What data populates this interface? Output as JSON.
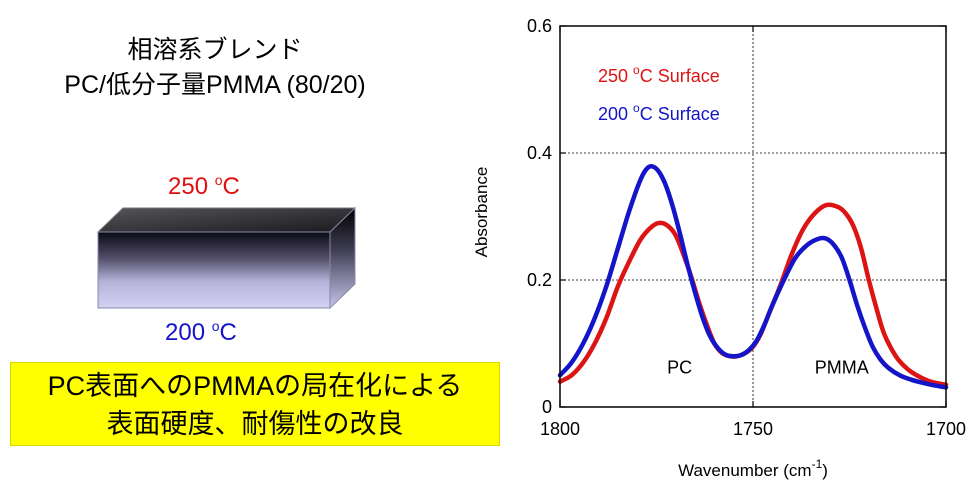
{
  "left_panel": {
    "title_line1": "相溶系ブレンド",
    "title_line2": "PC/低分子量PMMA (80/20)",
    "top_temp": {
      "value": "250 ",
      "sup": "o",
      "unit": "C",
      "color": "#e01010"
    },
    "bottom_temp": {
      "value": "200 ",
      "sup": "o",
      "unit": "C",
      "color": "#1414c8"
    },
    "banner_line1": "PC表面へのPMMAの局在化による",
    "banner_line2": "表面硬度、耐傷性の改良",
    "banner_color": "#ffff00"
  },
  "chart_data": {
    "type": "line",
    "xlabel": "Wavenumber (cm",
    "xlabel_sup": "-1",
    "xlabel_end": ")",
    "ylabel": "Absorbance",
    "xlim": [
      1800,
      1700
    ],
    "ylim": [
      0,
      0.6
    ],
    "x_ticks": [
      "1800",
      "1750",
      "1700"
    ],
    "y_ticks": [
      "0",
      "0.2",
      "0.4",
      "0.6"
    ],
    "reference_lines": {
      "x": 1750,
      "y": [
        0.2,
        0.4
      ]
    },
    "annotations": [
      {
        "text": "PC",
        "x": 1769,
        "y": 0.04
      },
      {
        "text": "PMMA",
        "x": 1727,
        "y": 0.04
      }
    ],
    "series": [
      {
        "name": "250 °C Surface",
        "name_parts": [
          "250 ",
          "o",
          "C Surface"
        ],
        "color": "#dd1414",
        "x": [
          1800,
          1797,
          1794,
          1791,
          1788,
          1785,
          1782,
          1779,
          1776,
          1774,
          1772,
          1770,
          1768,
          1766,
          1764,
          1762,
          1760,
          1758,
          1756,
          1754,
          1752,
          1750,
          1748,
          1746,
          1743,
          1740,
          1737,
          1734,
          1731,
          1728,
          1726,
          1724,
          1722,
          1720,
          1718,
          1716,
          1713,
          1710,
          1707,
          1704,
          1700
        ],
        "y": [
          0.04,
          0.05,
          0.07,
          0.1,
          0.14,
          0.19,
          0.23,
          0.265,
          0.285,
          0.29,
          0.285,
          0.27,
          0.24,
          0.205,
          0.165,
          0.13,
          0.1,
          0.085,
          0.08,
          0.08,
          0.085,
          0.095,
          0.115,
          0.145,
          0.19,
          0.24,
          0.28,
          0.305,
          0.318,
          0.315,
          0.305,
          0.285,
          0.25,
          0.2,
          0.155,
          0.115,
          0.08,
          0.06,
          0.048,
          0.04,
          0.035
        ]
      },
      {
        "name": "200 °C Surface",
        "name_parts": [
          "200 ",
          "o",
          "C Surface"
        ],
        "color": "#1414c8",
        "x": [
          1800,
          1797,
          1794,
          1791,
          1788,
          1785,
          1782,
          1779,
          1777,
          1775,
          1773,
          1771,
          1769,
          1767,
          1765,
          1763,
          1761,
          1759,
          1757,
          1755,
          1753,
          1751,
          1749,
          1747,
          1745,
          1742,
          1739,
          1736,
          1733,
          1731,
          1729,
          1727,
          1725,
          1723,
          1721,
          1719,
          1717,
          1715,
          1712,
          1709,
          1706,
          1703,
          1700
        ],
        "y": [
          0.05,
          0.07,
          0.1,
          0.14,
          0.19,
          0.25,
          0.31,
          0.36,
          0.378,
          0.375,
          0.355,
          0.32,
          0.275,
          0.225,
          0.18,
          0.14,
          0.11,
          0.092,
          0.082,
          0.08,
          0.082,
          0.09,
          0.105,
          0.13,
          0.16,
          0.2,
          0.235,
          0.255,
          0.265,
          0.265,
          0.255,
          0.235,
          0.2,
          0.16,
          0.125,
          0.095,
          0.075,
          0.062,
          0.05,
          0.043,
          0.038,
          0.034,
          0.031
        ]
      }
    ]
  }
}
